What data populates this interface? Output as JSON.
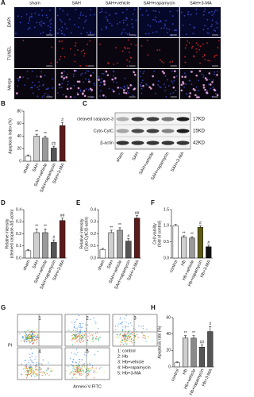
{
  "panel_labels": [
    "A",
    "B",
    "C",
    "D",
    "E",
    "F",
    "G",
    "H"
  ],
  "microscopy": {
    "columns": [
      "sham",
      "SAH",
      "SAH+vehicle",
      "SAH+rapamycin",
      "SAH+3-MA"
    ],
    "rows": [
      "DAPI",
      "TUNEL",
      "Merge"
    ]
  },
  "blot": {
    "proteins": [
      "cleaved caspase-3",
      "Cyto-CytC",
      "β-actin"
    ],
    "sizes": [
      "17KD",
      "15KD",
      "42KD"
    ],
    "lanes": [
      "sham",
      "SAH",
      "SAH+vehicle",
      "SAH+rapamycin",
      "SAH+3-MA"
    ]
  },
  "flow": {
    "plot_numbers": [
      "1",
      "2",
      "3",
      "4",
      "5"
    ],
    "legend": [
      "1: control",
      "2: Hb",
      "3: Hb+vehicle",
      "4: Hb+rapamycin",
      "5: Hb+3-MA"
    ],
    "y_label": "PI",
    "x_label": "Annexi V-FITC"
  },
  "chart_data": [
    {
      "type": "bar",
      "y_label": [
        "Apoptosis index (%)"
      ],
      "categories": [
        "sham",
        "SAH",
        "SAH+vehicle",
        "SAH+rapamycin",
        "SAH+3-MA"
      ],
      "values": [
        8,
        40,
        37,
        21,
        57
      ],
      "errors": [
        2,
        3,
        3,
        3,
        5
      ],
      "colors": [
        "#ffffff",
        "#cfcfcf",
        "#9a9a9a",
        "#555555",
        "#5b1a1a"
      ],
      "annotations": [
        null,
        "**",
        "**",
        "##",
        "#"
      ],
      "ylim": [
        0,
        80
      ],
      "yticks": [
        0,
        20,
        40,
        60,
        80
      ]
    },
    {
      "type": "bar",
      "y_label": [
        "Relative intensity",
        "(cleaved caspase-3/β-actin)"
      ],
      "categories": [
        "sham",
        "SAH",
        "SAH+vehicle",
        "SAH+rapamycin",
        "SAH+3-MA"
      ],
      "values": [
        0.06,
        0.21,
        0.21,
        0.13,
        0.31
      ],
      "errors": [
        0.01,
        0.03,
        0.03,
        0.02,
        0.02
      ],
      "colors": [
        "#ffffff",
        "#cfcfcf",
        "#9a9a9a",
        "#555555",
        "#5b1a1a"
      ],
      "annotations": [
        null,
        "**",
        "**",
        "#",
        "##"
      ],
      "ylim": [
        0,
        0.4
      ],
      "yticks": [
        {
          "value": 0,
          "label": "0.0"
        },
        0.1,
        0.2,
        0.3,
        0.4
      ]
    },
    {
      "type": "bar",
      "y_label": [
        "Relative intensity",
        "(Cyto-CytC/β-actin)"
      ],
      "categories": [
        "sham",
        "SAH",
        "SAH+vehicle",
        "SAH+rapamycin",
        "SAH+3-MA"
      ],
      "values": [
        0.07,
        0.21,
        0.23,
        0.14,
        0.33
      ],
      "errors": [
        0.01,
        0.02,
        0.02,
        0.02,
        0.02
      ],
      "colors": [
        "#ffffff",
        "#cfcfcf",
        "#9a9a9a",
        "#555555",
        "#5b1a1a"
      ],
      "annotations": [
        null,
        "**",
        "**",
        "#",
        "##"
      ],
      "ylim": [
        0,
        0.4
      ],
      "yticks": [
        {
          "value": 0,
          "label": "0.0"
        },
        0.1,
        0.2,
        0.3,
        0.4
      ]
    },
    {
      "type": "bar",
      "y_label": [
        "Cell viability",
        "(fold of control)"
      ],
      "categories": [
        "control",
        "Hb",
        "Hb+vehicle",
        "Hb+rapamycin",
        "Hb+3-MA"
      ],
      "values": [
        1.0,
        0.65,
        0.62,
        0.95,
        0.35
      ],
      "errors": [
        0.04,
        0.04,
        0.04,
        0.05,
        0.05
      ],
      "colors": [
        "#ffffff",
        "#cfcfcf",
        "#9a9a9a",
        "#5c5c14",
        "#111111"
      ],
      "annotations": [
        null,
        "**",
        "**",
        "#",
        "#"
      ],
      "ylim": [
        0,
        1.5
      ],
      "yticks": [
        {
          "value": 0,
          "label": "0.0"
        },
        0.5,
        {
          "value": 1,
          "label": "1.0"
        },
        1.5
      ]
    },
    {
      "type": "bar",
      "y_label": [
        "Apoptosis rate (%)"
      ],
      "categories": [
        "control",
        "Hb",
        "Hb+vehicle",
        "Hb+rapamycin",
        "Hb+3-MA"
      ],
      "values": [
        5,
        35,
        35,
        24,
        43
      ],
      "errors": [
        1,
        3,
        3,
        3,
        6
      ],
      "colors": [
        "#ffffff",
        "#cfcfcf",
        "#8a8a8a",
        "#555555",
        "#555555"
      ],
      "annotations": [
        null,
        "**",
        "**",
        "##",
        "#"
      ],
      "ylim": [
        0,
        60
      ],
      "yticks": [
        0,
        20,
        40,
        60
      ]
    }
  ]
}
